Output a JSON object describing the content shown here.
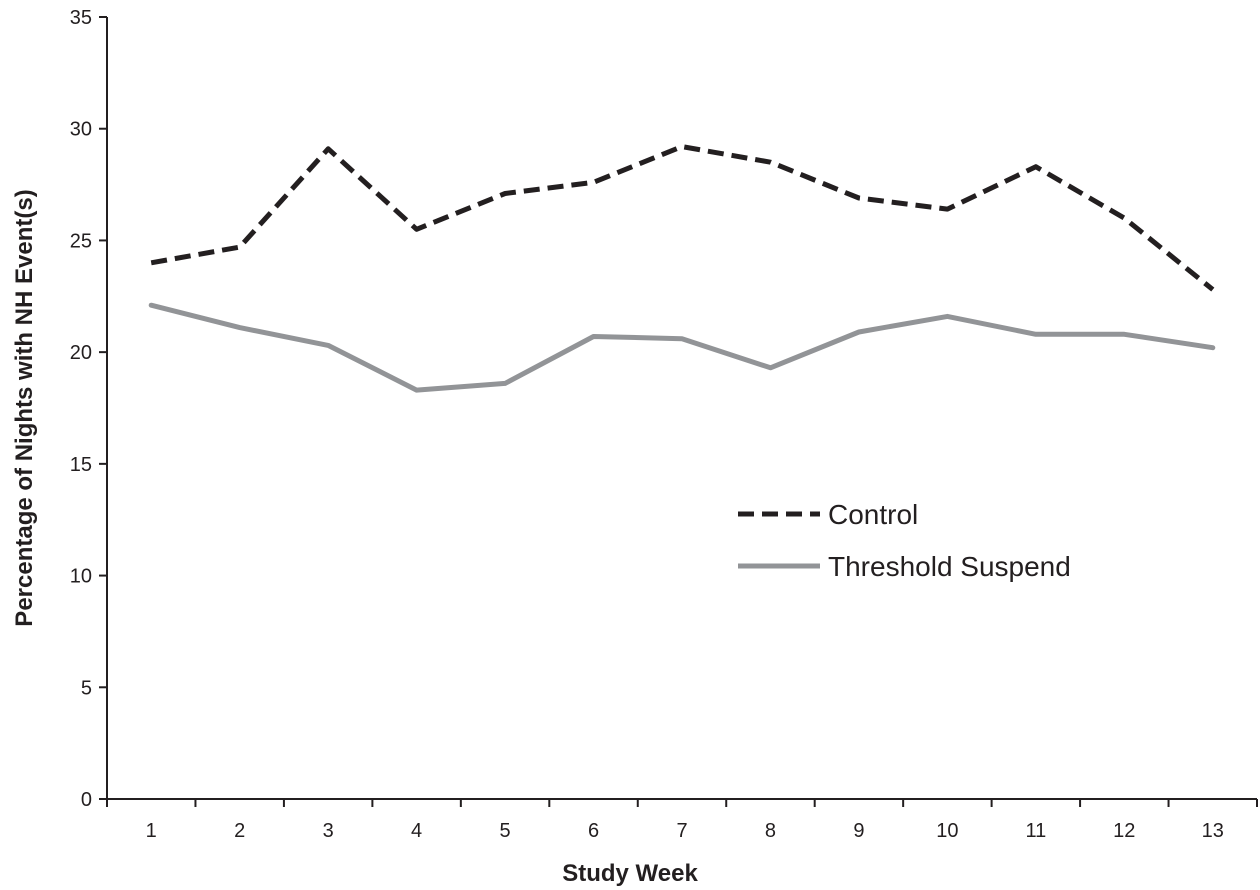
{
  "chart_data": {
    "type": "line",
    "title": "",
    "xlabel": "Study Week",
    "ylabel": "Percentage of Nights with NH Event(s)",
    "x": [
      "1",
      "2",
      "3",
      "4",
      "5",
      "6",
      "7",
      "8",
      "9",
      "10",
      "11",
      "12",
      "13"
    ],
    "ylim": [
      0,
      35
    ],
    "yticks": [
      "0",
      "5",
      "10",
      "15",
      "20",
      "25",
      "30",
      "35"
    ],
    "grid": false,
    "legend_position": "center-right",
    "series": [
      {
        "name": "Control",
        "style": "dashed",
        "color": "#231f20",
        "values": [
          24.0,
          24.7,
          29.1,
          25.5,
          27.1,
          27.6,
          29.2,
          28.5,
          26.9,
          26.4,
          28.3,
          26.0,
          22.8
        ]
      },
      {
        "name": "Threshold Suspend",
        "style": "solid",
        "color": "#929497",
        "values": [
          22.1,
          21.1,
          20.3,
          18.3,
          18.6,
          20.7,
          20.6,
          19.3,
          20.9,
          21.6,
          20.8,
          20.8,
          20.2
        ]
      }
    ]
  }
}
